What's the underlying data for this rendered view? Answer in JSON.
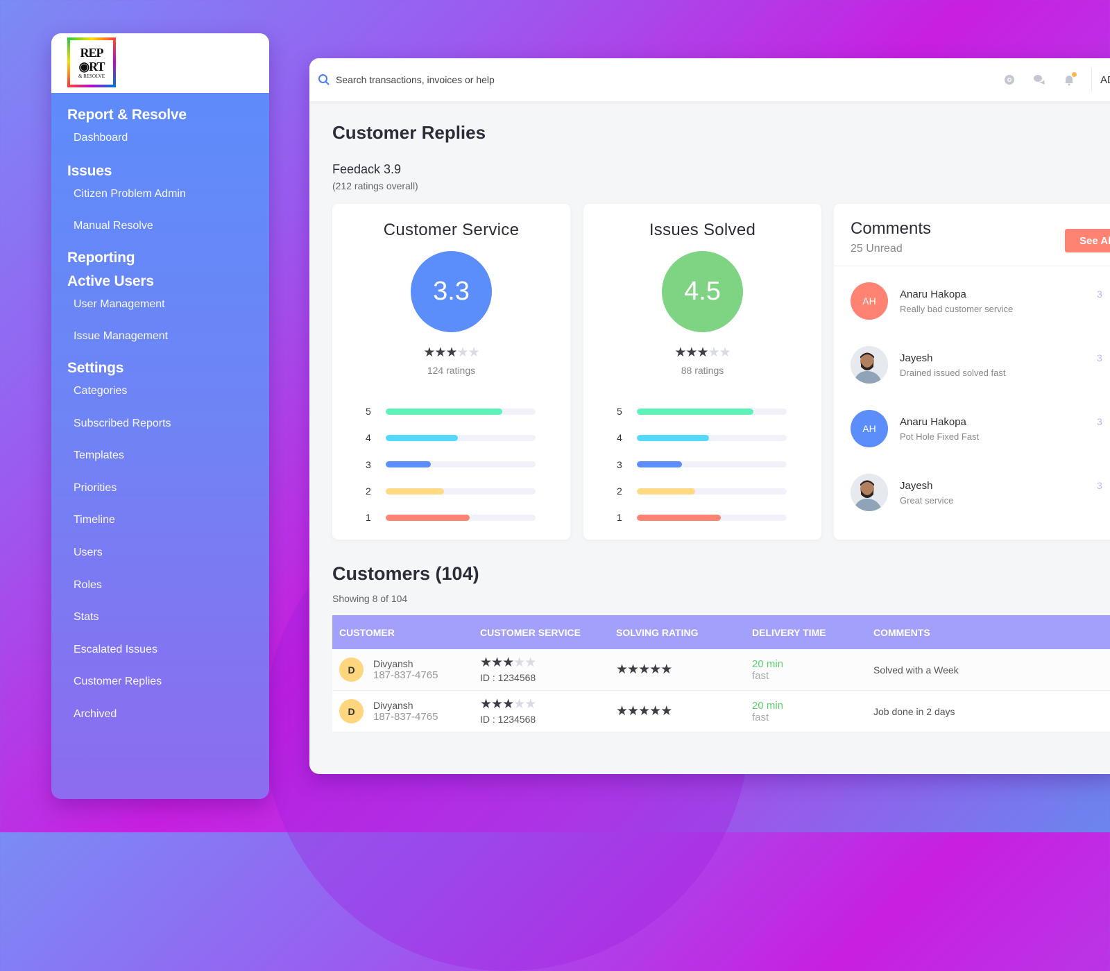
{
  "logo": {
    "text": "REPORT & RESOLVE"
  },
  "sidebar": {
    "sections": [
      {
        "heading": "Report & Resolve",
        "items": [
          "Dashboard"
        ]
      },
      {
        "heading": "Issues",
        "items": [
          "Citizen Problem Admin",
          "Manual Resolve"
        ]
      },
      {
        "heading": "Reporting",
        "items": []
      },
      {
        "heading": "Active Users",
        "items": [
          "User Management",
          "Issue Management"
        ]
      },
      {
        "heading": "Settings",
        "items": [
          "Categories",
          "Subscribed Reports",
          "Templates",
          "Priorities",
          "Timeline",
          "Users",
          "Roles",
          "Stats",
          "Escalated Issues",
          "Customer Replies",
          "Archived"
        ]
      }
    ]
  },
  "topbar": {
    "search_placeholder": "Search transactions, invoices or help",
    "icons": [
      "globe-icon",
      "chat-icon",
      "bell-icon"
    ],
    "user": "ADMIN",
    "notification_dot_color": "#ffb64d"
  },
  "page": {
    "title": "Customer Replies",
    "feedback": "Feedack 3.9",
    "feedback_sub": "(212 ratings overall)"
  },
  "rating_cards": [
    {
      "title": "Customer Service",
      "score": "3.3",
      "color": "#5b8dfb",
      "stars": 3,
      "count": "124 ratings",
      "bars": [
        {
          "label": "5",
          "pct": 78,
          "color": "#5ef2b8"
        },
        {
          "label": "4",
          "pct": 48,
          "color": "#55d8fe"
        },
        {
          "label": "3",
          "pct": 30,
          "color": "#5b8dfb"
        },
        {
          "label": "2",
          "pct": 39,
          "color": "#ffda83"
        },
        {
          "label": "1",
          "pct": 56,
          "color": "#ff8373"
        }
      ]
    },
    {
      "title": "Issues Solved",
      "score": "4.5",
      "color": "#7ed482",
      "stars": 3,
      "count": "88 ratings",
      "bars": [
        {
          "label": "5",
          "pct": 78,
          "color": "#5ef2b8"
        },
        {
          "label": "4",
          "pct": 48,
          "color": "#55d8fe"
        },
        {
          "label": "3",
          "pct": 30,
          "color": "#5b8dfb"
        },
        {
          "label": "2",
          "pct": 39,
          "color": "#ffda83"
        },
        {
          "label": "1",
          "pct": 56,
          "color": "#ff8373"
        }
      ]
    }
  ],
  "comments": {
    "title": "Comments",
    "unread": "25 Unread",
    "see_all": "See All",
    "items": [
      {
        "initials": "AH",
        "avatar_color": "#ff8373",
        "name": "Anaru Hakopa",
        "message": "Really bad customer service",
        "time": "3"
      },
      {
        "initials": "",
        "avatar_color": "photo",
        "name": "Jayesh",
        "message": "Drained issued solved fast",
        "time": "3"
      },
      {
        "initials": "AH",
        "avatar_color": "#5b8dfb",
        "name": "Anaru Hakopa",
        "message": "Pot Hole Fixed Fast",
        "time": "3"
      },
      {
        "initials": "",
        "avatar_color": "photo",
        "name": "Jayesh",
        "message": "Great service",
        "time": "3"
      }
    ]
  },
  "customers": {
    "title": "Customers (104)",
    "showing": "Showing 8 of 104",
    "columns": [
      "CUSTOMER",
      "CUSTOMER SERVICE",
      "SOLVING RATING",
      "DELIVERY TIME",
      "COMMENTS"
    ],
    "rows": [
      {
        "initial": "D",
        "name": "Divyansh",
        "phone": "187-837-4765",
        "service_stars": 3,
        "id": "ID : 1234568",
        "solving_stars": 5,
        "delivery": "20 min",
        "delivery_sub": "fast",
        "comment": "Solved with a Week"
      },
      {
        "initial": "D",
        "name": "Divyansh",
        "phone": "187-837-4765",
        "service_stars": 3,
        "id": "ID : 1234568",
        "solving_stars": 5,
        "delivery": "20 min",
        "delivery_sub": "fast",
        "comment": "Job done in 2 days"
      }
    ]
  }
}
